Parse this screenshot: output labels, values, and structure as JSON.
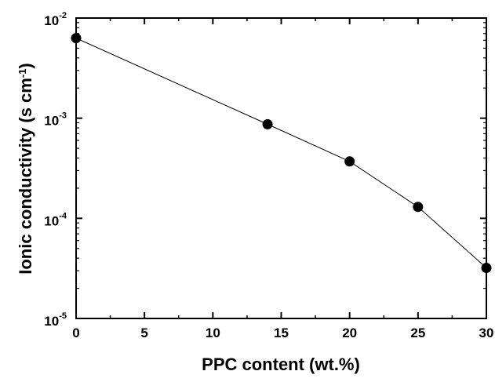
{
  "chart_data": {
    "type": "scatter",
    "title": "",
    "xlabel": "PPC content (wt.%)",
    "ylabel": {
      "prefix": "Ionic conductivity (s cm",
      "superscript": "-1",
      "suffix": ")"
    },
    "x_scale": "linear",
    "y_scale": "log",
    "xlim": [
      0,
      30
    ],
    "ylim": [
      1e-05,
      0.01
    ],
    "x_ticks": [
      {
        "value": 0,
        "label": "0"
      },
      {
        "value": 5,
        "label": "5"
      },
      {
        "value": 10,
        "label": "10"
      },
      {
        "value": 15,
        "label": "15"
      },
      {
        "value": 20,
        "label": "20"
      },
      {
        "value": 25,
        "label": "25"
      },
      {
        "value": 30,
        "label": "30"
      }
    ],
    "y_ticks": [
      {
        "value": 1e-05,
        "base": "10",
        "exp": "-5"
      },
      {
        "value": 0.0001,
        "base": "10",
        "exp": "-4"
      },
      {
        "value": 0.001,
        "base": "10",
        "exp": "-3"
      },
      {
        "value": 0.01,
        "base": "10",
        "exp": "-2"
      }
    ],
    "grid": false,
    "legend": "none",
    "series": [
      {
        "x": [
          0,
          14,
          20,
          25,
          30
        ],
        "y": [
          0.0063,
          0.00087,
          0.00037,
          0.00013,
          3.2e-05
        ],
        "marker": "circle",
        "connected": true,
        "color": "#000000"
      }
    ]
  }
}
